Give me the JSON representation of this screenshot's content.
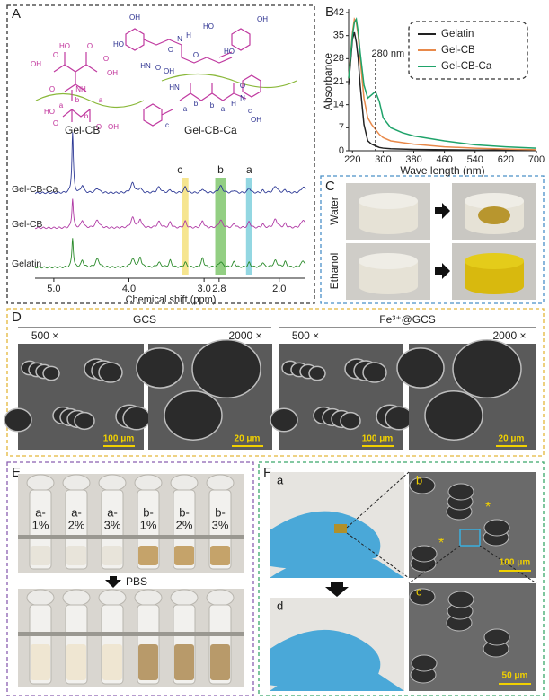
{
  "panels": {
    "A": {
      "label": "A",
      "structures": [
        "Gel-CB",
        "Gel-CB-Ca"
      ],
      "atoms": [
        "OH",
        "O",
        "HO",
        "O",
        "O",
        "OH",
        "NH",
        "O",
        "HO",
        "O",
        "a",
        "b",
        "b",
        "a",
        "O",
        "OH",
        "HO",
        "OH",
        "HO",
        "OH",
        "HO",
        "N",
        "O",
        "H",
        "O",
        "HN",
        "O",
        "OH",
        "H",
        "N",
        "HN",
        "a",
        "b",
        "b",
        "a",
        "c",
        "c",
        "O",
        "OH"
      ],
      "spectra": [
        "Gel-CB-Ca",
        "Gel-CB",
        "Gelatin"
      ],
      "peaks": [
        {
          "label": "c",
          "shift": 3.25
        },
        {
          "label": "b",
          "shift": 2.78
        },
        {
          "label": "a",
          "shift": 2.4
        }
      ],
      "xlabel": "Chemical shift (ppm)",
      "xlim": [
        5.25,
        1.65
      ],
      "xticks": [
        {
          "value": 5,
          "label": "5.0"
        },
        {
          "value": 4,
          "label": "4.0"
        },
        {
          "value": 3,
          "label": "3.0"
        },
        2.8,
        {
          "value": 2,
          "label": "2.0"
        }
      ]
    },
    "B": {
      "label": "B"
    },
    "C": {
      "label": "C",
      "rows": [
        "Water",
        "Ethanol"
      ]
    },
    "D": {
      "label": "D",
      "groups": [
        "GCS",
        "Fe³⁺@GCS"
      ],
      "magnifications": [
        "500 ×",
        "2000 ×",
        "500 ×",
        "2000 ×"
      ],
      "scale_bars": [
        "100 μm",
        "20 μm",
        "100 μm",
        "20 μm"
      ]
    },
    "E": {
      "label": "E",
      "vials": [
        [
          "a-",
          "1%"
        ],
        [
          "a-",
          "2%"
        ],
        [
          "a-",
          "3%"
        ],
        [
          "b-",
          "1%"
        ],
        [
          "b-",
          "2%"
        ],
        [
          "b-",
          "3%"
        ]
      ],
      "step": "PBS"
    },
    "F": {
      "label": "F",
      "sub_labels": [
        "a",
        "b",
        "d",
        "c"
      ],
      "scale_bars": [
        "100 μm",
        "50 μm"
      ],
      "marks": [
        "*",
        "*"
      ]
    }
  },
  "chart_data": {
    "type": "line",
    "xlabel": "Wave length (nm)",
    "ylabel": "Absorbance",
    "annotation": "280 nm",
    "x": [
      210,
      220,
      225,
      230,
      235,
      240,
      250,
      260,
      270,
      280,
      290,
      300,
      320,
      350,
      380,
      460,
      540,
      620,
      700
    ],
    "series": [
      {
        "name": "Gelatin",
        "color": "#222222",
        "values": [
          20,
          34,
          36,
          33,
          28,
          20,
          8,
          3,
          2,
          1.5,
          1,
          0.8,
          0.6,
          0.5,
          0.4,
          0.3,
          0.2,
          0.2,
          0.1
        ]
      },
      {
        "name": "Gel-CB",
        "color": "#e8894a",
        "values": [
          22,
          36,
          40,
          39,
          35,
          28,
          16,
          10,
          8,
          6.5,
          5,
          4,
          3,
          2.5,
          2,
          1.2,
          0.8,
          0.5,
          0.3
        ]
      },
      {
        "name": "Gel-CB-Ca",
        "color": "#1fa36a",
        "values": [
          22,
          35,
          39,
          40,
          36,
          30,
          20,
          16,
          17,
          18,
          15,
          10,
          7,
          5.5,
          4.5,
          3,
          1.8,
          1.2,
          0.8
        ]
      }
    ],
    "xlim": [
      210,
      700
    ],
    "xticks": [
      220,
      300,
      380,
      460,
      540,
      620,
      700
    ],
    "ylim": [
      0,
      42
    ],
    "yticks": [
      0,
      7,
      14,
      21,
      28,
      35,
      42
    ],
    "legend": "upper right"
  }
}
